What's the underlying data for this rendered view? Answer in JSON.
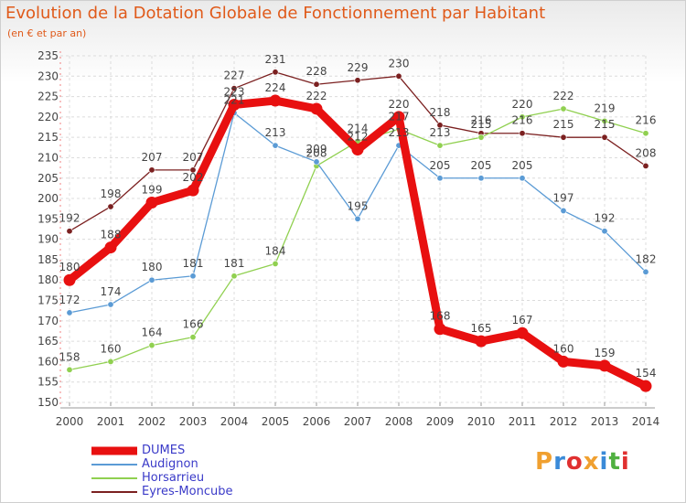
{
  "title": "Evolution de la Dotation Globale de Fonctionnement par Habitant",
  "subtitle": "(en € et par an)",
  "logo": {
    "text": "Proxiti",
    "letters": [
      "P",
      "r",
      "o",
      "x",
      "i",
      "t",
      "i"
    ],
    "colors": [
      "#f0a030",
      "#3a8ad8",
      "#e03030",
      "#f0a030",
      "#3a8ad8",
      "#50b040",
      "#e03030"
    ]
  },
  "chart_data": {
    "type": "line",
    "title": "Evolution de la Dotation Globale de Fonctionnement par Habitant",
    "subtitle": "(en € et par an)",
    "x": [
      2000,
      2001,
      2002,
      2003,
      2004,
      2005,
      2006,
      2007,
      2008,
      2009,
      2010,
      2011,
      2012,
      2013,
      2014
    ],
    "ylim": [
      150,
      235
    ],
    "yticks": [
      150,
      155,
      160,
      165,
      170,
      175,
      180,
      185,
      190,
      195,
      200,
      205,
      210,
      215,
      220,
      225,
      230,
      235
    ],
    "grid": true,
    "legend_position": "bottom-left",
    "series": [
      {
        "name": "DUMES",
        "color": "#e81010",
        "values": [
          180,
          188,
          199,
          202,
          223,
          224,
          222,
          212,
          220,
          168,
          165,
          167,
          160,
          159,
          154
        ]
      },
      {
        "name": "Audignon",
        "color": "#5b9bd5",
        "values": [
          172,
          174,
          180,
          181,
          221,
          213,
          209,
          195,
          213,
          205,
          205,
          205,
          197,
          192,
          182
        ]
      },
      {
        "name": "Horsarrieu",
        "color": "#90d050",
        "values": [
          158,
          160,
          164,
          166,
          181,
          184,
          208,
          214,
          217,
          213,
          215,
          220,
          222,
          219,
          216
        ]
      },
      {
        "name": "Eyres-Moncube",
        "color": "#7b2020",
        "values": [
          192,
          198,
          207,
          207,
          227,
          231,
          228,
          229,
          230,
          218,
          216,
          216,
          215,
          215,
          208
        ]
      }
    ]
  }
}
